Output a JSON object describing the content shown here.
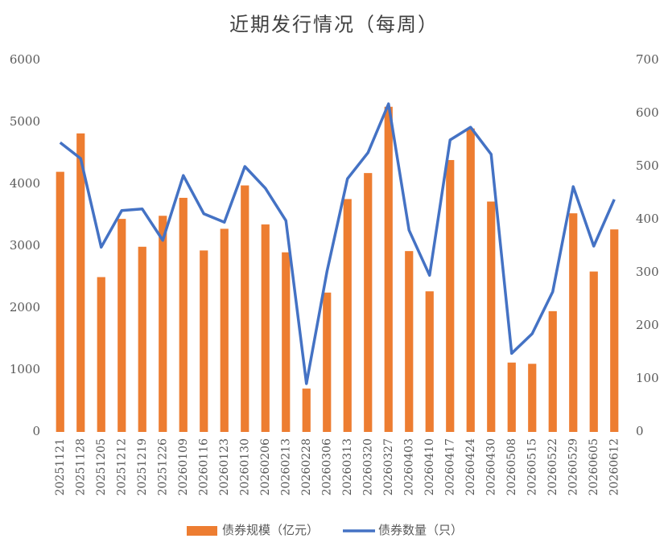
{
  "chart_data": {
    "type": "bar_line",
    "title": "近期发行情况（每周）",
    "categories": [
      "20251121",
      "20251128",
      "20251205",
      "20251212",
      "20251219",
      "20251226",
      "20260109",
      "20260116",
      "20260123",
      "20260130",
      "20260206",
      "20260213",
      "20260228",
      "20260306",
      "20260313",
      "20260320",
      "20260327",
      "20260403",
      "20260410",
      "20260417",
      "20260424",
      "20260430",
      "20260508",
      "20260515",
      "20260522",
      "20260529",
      "20260605",
      "20260612"
    ],
    "series": [
      {
        "name": "债券规模（亿元）",
        "type": "bar",
        "color": "#ED7D31",
        "values": [
          4200,
          4820,
          2500,
          3440,
          2990,
          3490,
          3780,
          2930,
          3280,
          3980,
          3350,
          2900,
          700,
          2250,
          3760,
          4180,
          5250,
          2920,
          2270,
          4390,
          4900,
          3720,
          1120,
          1100,
          1950,
          3530,
          2590,
          3270
        ]
      },
      {
        "name": "债券数量（只）",
        "type": "line",
        "axis": "y2",
        "color": "#4472C4",
        "values": [
          545,
          515,
          348,
          417,
          420,
          361,
          483,
          411,
          395,
          500,
          459,
          398,
          91,
          302,
          477,
          526,
          618,
          380,
          295,
          550,
          574,
          523,
          148,
          185,
          264,
          462,
          350,
          438
        ]
      }
    ],
    "ylim": [
      0,
      6000
    ],
    "yticks": [
      0,
      1000,
      2000,
      3000,
      4000,
      5000,
      6000
    ],
    "y2lim": [
      0,
      700
    ],
    "y2ticks": [
      0,
      100,
      200,
      300,
      400,
      500,
      600,
      700
    ],
    "legend": "bottom"
  }
}
